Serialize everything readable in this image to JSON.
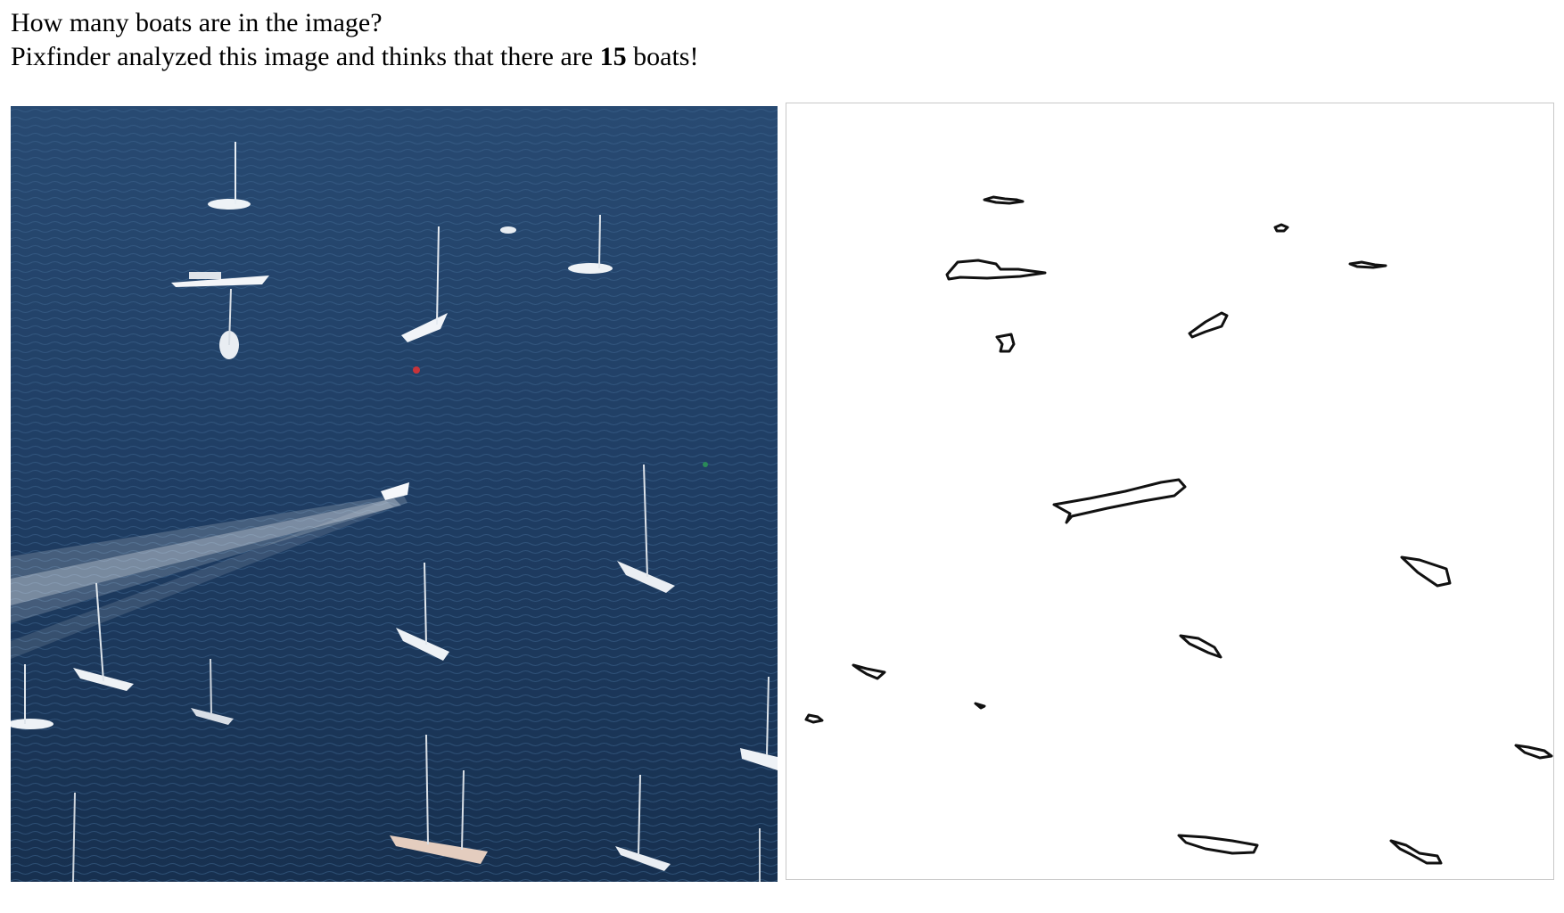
{
  "question": "How many boats are in the image?",
  "result": {
    "prefix": "Pixfinder analyzed this image and thinks that there are",
    "count": "15",
    "suffix": "boats!"
  },
  "images": {
    "photo": {
      "icon": "aerial-harbor-photo"
    },
    "outline": {
      "icon": "boat-contour-map"
    }
  },
  "colors": {
    "water": "#1d3a5c",
    "outline_stroke": "#111111",
    "border": "#c8c8c8"
  }
}
